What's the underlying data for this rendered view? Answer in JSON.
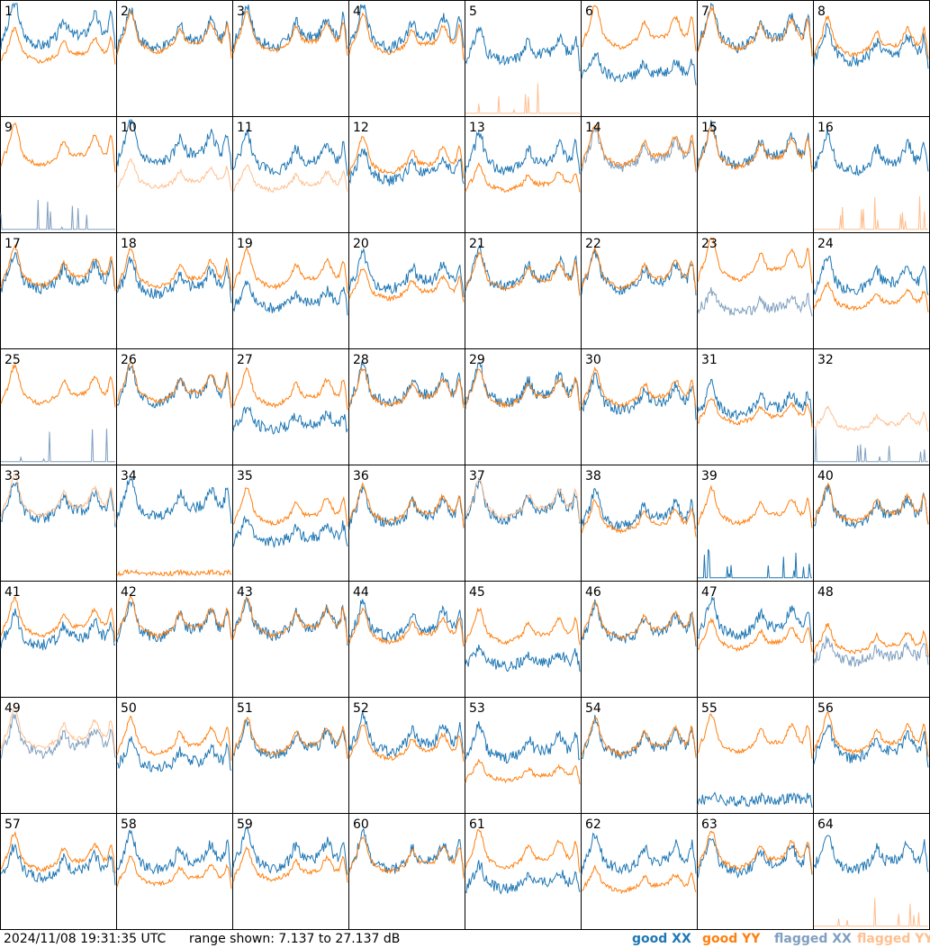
{
  "chart_data": {
    "type": "line",
    "layout": "8x8 small multiples",
    "x_ticks": false,
    "y_ticks": false,
    "grid": false,
    "legend_placement": "bottom-right",
    "colors": {
      "good_xx": "#1f77b4",
      "good_yy": "#ff7f0e",
      "flagged_xx": "#7f9fbf",
      "flagged_yy": "#ffbf8f"
    },
    "panels": [
      {
        "label": "1",
        "xx": "good",
        "yy": "good",
        "xx_level": 0.72,
        "yy_level": 0.55
      },
      {
        "label": "2",
        "xx": "good",
        "yy": "good",
        "xx_level": 0.68,
        "yy_level": 0.65
      },
      {
        "label": "3",
        "xx": "good",
        "yy": "good",
        "xx_level": 0.7,
        "yy_level": 0.66
      },
      {
        "label": "4",
        "xx": "good",
        "yy": "good",
        "xx_level": 0.7,
        "yy_level": 0.64
      },
      {
        "label": "5",
        "xx": "good",
        "yy": "flagged",
        "xx_level": 0.55,
        "yy_level": 0.0
      },
      {
        "label": "6",
        "xx": "good",
        "yy": "good",
        "xx_level": 0.38,
        "yy_level": 0.7
      },
      {
        "label": "7",
        "xx": "good",
        "yy": "good",
        "xx_level": 0.7,
        "yy_level": 0.68
      },
      {
        "label": "8",
        "xx": "good",
        "yy": "good",
        "xx_level": 0.55,
        "yy_level": 0.62
      },
      {
        "label": "9",
        "xx": "flagged",
        "yy": "good",
        "xx_level": 0.0,
        "yy_level": 0.68
      },
      {
        "label": "10",
        "xx": "good",
        "yy": "flagged",
        "xx_level": 0.7,
        "yy_level": 0.45
      },
      {
        "label": "11",
        "xx": "good",
        "yy": "flagged",
        "xx_level": 0.62,
        "yy_level": 0.42
      },
      {
        "label": "12",
        "xx": "good",
        "yy": "good",
        "xx_level": 0.52,
        "yy_level": 0.6
      },
      {
        "label": "13",
        "xx": "good",
        "yy": "good",
        "xx_level": 0.62,
        "yy_level": 0.42
      },
      {
        "label": "14",
        "xx": "flagged",
        "yy": "good",
        "xx_level": 0.65,
        "yy_level": 0.68
      },
      {
        "label": "15",
        "xx": "good",
        "yy": "good",
        "xx_level": 0.68,
        "yy_level": 0.66
      },
      {
        "label": "16",
        "xx": "good",
        "yy": "flagged",
        "xx_level": 0.62,
        "yy_level": 0.0
      },
      {
        "label": "17",
        "xx": "good",
        "yy": "good",
        "xx_level": 0.6,
        "yy_level": 0.64
      },
      {
        "label": "18",
        "xx": "good",
        "yy": "good",
        "xx_level": 0.55,
        "yy_level": 0.62
      },
      {
        "label": "19",
        "xx": "good",
        "yy": "good",
        "xx_level": 0.4,
        "yy_level": 0.62
      },
      {
        "label": "20",
        "xx": "good",
        "yy": "good",
        "xx_level": 0.6,
        "yy_level": 0.5
      },
      {
        "label": "21",
        "xx": "good",
        "yy": "good",
        "xx_level": 0.62,
        "yy_level": 0.6
      },
      {
        "label": "22",
        "xx": "good",
        "yy": "good",
        "xx_level": 0.6,
        "yy_level": 0.62
      },
      {
        "label": "23",
        "xx": "flagged",
        "yy": "good",
        "xx_level": 0.35,
        "yy_level": 0.7
      },
      {
        "label": "24",
        "xx": "good",
        "yy": "good",
        "xx_level": 0.58,
        "yy_level": 0.4
      },
      {
        "label": "25",
        "xx": "flagged",
        "yy": "good",
        "xx_level": 0.0,
        "yy_level": 0.62
      },
      {
        "label": "26",
        "xx": "good",
        "yy": "good",
        "xx_level": 0.62,
        "yy_level": 0.64
      },
      {
        "label": "27",
        "xx": "good",
        "yy": "good",
        "xx_level": 0.35,
        "yy_level": 0.6
      },
      {
        "label": "28",
        "xx": "good",
        "yy": "good",
        "xx_level": 0.62,
        "yy_level": 0.6
      },
      {
        "label": "29",
        "xx": "good",
        "yy": "good",
        "xx_level": 0.62,
        "yy_level": 0.6
      },
      {
        "label": "30",
        "xx": "good",
        "yy": "good",
        "xx_level": 0.55,
        "yy_level": 0.6
      },
      {
        "label": "31",
        "xx": "good",
        "yy": "good",
        "xx_level": 0.5,
        "yy_level": 0.42
      },
      {
        "label": "32",
        "xx": "flagged",
        "yy": "flagged",
        "xx_level": 0.0,
        "yy_level": 0.35
      },
      {
        "label": "33",
        "xx": "good",
        "yy": "flagged",
        "xx_level": 0.62,
        "yy_level": 0.66
      },
      {
        "label": "34",
        "xx": "good",
        "yy": "good",
        "xx_level": 0.65,
        "yy_level": 0.05
      },
      {
        "label": "35",
        "xx": "good",
        "yy": "good",
        "xx_level": 0.38,
        "yy_level": 0.58
      },
      {
        "label": "36",
        "xx": "good",
        "yy": "good",
        "xx_level": 0.58,
        "yy_level": 0.6
      },
      {
        "label": "37",
        "xx": "good",
        "yy": "flagged",
        "xx_level": 0.62,
        "yy_level": 0.64
      },
      {
        "label": "38",
        "xx": "good",
        "yy": "good",
        "xx_level": 0.55,
        "yy_level": 0.5
      },
      {
        "label": "39",
        "xx": "good",
        "yy": "good",
        "xx_level": 0.0,
        "yy_level": 0.58
      },
      {
        "label": "40",
        "xx": "good",
        "yy": "good",
        "xx_level": 0.58,
        "yy_level": 0.6
      },
      {
        "label": "41",
        "xx": "good",
        "yy": "good",
        "xx_level": 0.52,
        "yy_level": 0.62
      },
      {
        "label": "42",
        "xx": "good",
        "yy": "good",
        "xx_level": 0.6,
        "yy_level": 0.62
      },
      {
        "label": "43",
        "xx": "good",
        "yy": "good",
        "xx_level": 0.62,
        "yy_level": 0.62
      },
      {
        "label": "44",
        "xx": "good",
        "yy": "good",
        "xx_level": 0.6,
        "yy_level": 0.55
      },
      {
        "label": "45",
        "xx": "good",
        "yy": "good",
        "xx_level": 0.3,
        "yy_level": 0.55
      },
      {
        "label": "46",
        "xx": "good",
        "yy": "good",
        "xx_level": 0.58,
        "yy_level": 0.6
      },
      {
        "label": "47",
        "xx": "good",
        "yy": "good",
        "xx_level": 0.62,
        "yy_level": 0.48
      },
      {
        "label": "48",
        "xx": "flagged",
        "yy": "good",
        "xx_level": 0.35,
        "yy_level": 0.45
      },
      {
        "label": "49",
        "xx": "flagged",
        "yy": "flagged",
        "xx_level": 0.6,
        "yy_level": 0.66
      },
      {
        "label": "50",
        "xx": "good",
        "yy": "good",
        "xx_level": 0.45,
        "yy_level": 0.6
      },
      {
        "label": "51",
        "xx": "good",
        "yy": "good",
        "xx_level": 0.58,
        "yy_level": 0.6
      },
      {
        "label": "52",
        "xx": "good",
        "yy": "good",
        "xx_level": 0.62,
        "yy_level": 0.55
      },
      {
        "label": "53",
        "xx": "good",
        "yy": "good",
        "xx_level": 0.55,
        "yy_level": 0.32
      },
      {
        "label": "54",
        "xx": "good",
        "yy": "good",
        "xx_level": 0.58,
        "yy_level": 0.6
      },
      {
        "label": "55",
        "xx": "good",
        "yy": "good",
        "xx_level": 0.1,
        "yy_level": 0.62
      },
      {
        "label": "56",
        "xx": "good",
        "yy": "good",
        "xx_level": 0.55,
        "yy_level": 0.62
      },
      {
        "label": "57",
        "xx": "good",
        "yy": "good",
        "xx_level": 0.52,
        "yy_level": 0.6
      },
      {
        "label": "58",
        "xx": "good",
        "yy": "good",
        "xx_level": 0.6,
        "yy_level": 0.45
      },
      {
        "label": "59",
        "xx": "good",
        "yy": "good",
        "xx_level": 0.62,
        "yy_level": 0.5
      },
      {
        "label": "60",
        "xx": "good",
        "yy": "good",
        "xx_level": 0.6,
        "yy_level": 0.58
      },
      {
        "label": "61",
        "xx": "good",
        "yy": "good",
        "xx_level": 0.4,
        "yy_level": 0.62
      },
      {
        "label": "62",
        "xx": "good",
        "yy": "good",
        "xx_level": 0.6,
        "yy_level": 0.38
      },
      {
        "label": "63",
        "xx": "good",
        "yy": "good",
        "xx_level": 0.58,
        "yy_level": 0.62
      },
      {
        "label": "64",
        "xx": "good",
        "yy": "flagged",
        "xx_level": 0.6,
        "yy_level": 0.0
      }
    ]
  },
  "footer": {
    "timestamp": "2024/11/08 19:31:35 UTC",
    "range": "range shown: 7.137 to 27.137 dB",
    "legend": {
      "good_xx": "good XX",
      "good_yy": "good YY",
      "flagged_xx": "flagged XX",
      "flagged_yy": "flagged YY"
    }
  }
}
